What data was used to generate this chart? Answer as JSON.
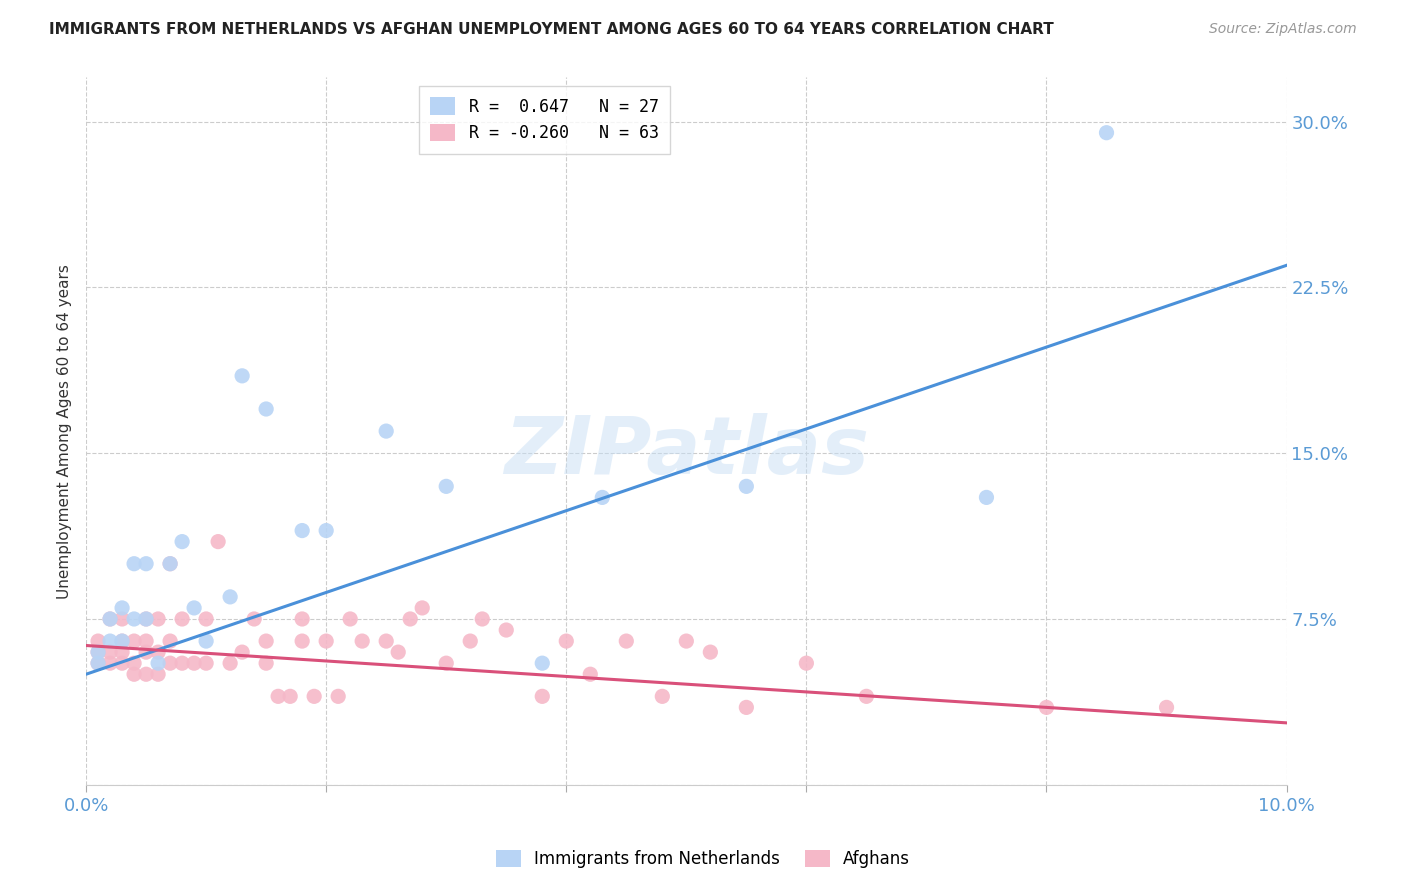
{
  "title": "IMMIGRANTS FROM NETHERLANDS VS AFGHAN UNEMPLOYMENT AMONG AGES 60 TO 64 YEARS CORRELATION CHART",
  "source": "Source: ZipAtlas.com",
  "ylabel": "Unemployment Among Ages 60 to 64 years",
  "xlim": [
    0.0,
    0.1
  ],
  "ylim": [
    0.0,
    0.32
  ],
  "yticks": [
    0.0,
    0.075,
    0.15,
    0.225,
    0.3
  ],
  "ytick_labels": [
    "",
    "7.5%",
    "15.0%",
    "22.5%",
    "30.0%"
  ],
  "xticks": [
    0.0,
    0.02,
    0.04,
    0.06,
    0.08,
    0.1
  ],
  "xtick_labels": [
    "0.0%",
    "",
    "",
    "",
    "",
    "10.0%"
  ],
  "color_netherlands": "#b8d4f5",
  "color_afghan": "#f5b8c8",
  "color_line_netherlands": "#4a90d9",
  "color_line_afghan": "#d9507a",
  "legend_R_netherlands": "R =  0.647",
  "legend_N_netherlands": "N = 27",
  "legend_R_afghan": "R = -0.260",
  "legend_N_afghan": "N = 63",
  "watermark": "ZIPatlas",
  "nl_line_x0": 0.0,
  "nl_line_y0": 0.05,
  "nl_line_x1": 0.1,
  "nl_line_y1": 0.235,
  "af_line_x0": 0.0,
  "af_line_y0": 0.063,
  "af_line_x1": 0.1,
  "af_line_y1": 0.028,
  "netherlands_x": [
    0.001,
    0.001,
    0.002,
    0.002,
    0.003,
    0.003,
    0.004,
    0.004,
    0.005,
    0.005,
    0.006,
    0.007,
    0.008,
    0.009,
    0.01,
    0.012,
    0.013,
    0.015,
    0.018,
    0.02,
    0.025,
    0.03,
    0.038,
    0.043,
    0.055,
    0.075,
    0.085
  ],
  "netherlands_y": [
    0.055,
    0.06,
    0.065,
    0.075,
    0.065,
    0.08,
    0.075,
    0.1,
    0.075,
    0.1,
    0.055,
    0.1,
    0.11,
    0.08,
    0.065,
    0.085,
    0.185,
    0.17,
    0.115,
    0.115,
    0.16,
    0.135,
    0.055,
    0.13,
    0.135,
    0.13,
    0.295
  ],
  "afghan_x": [
    0.001,
    0.001,
    0.001,
    0.002,
    0.002,
    0.002,
    0.003,
    0.003,
    0.003,
    0.003,
    0.004,
    0.004,
    0.004,
    0.005,
    0.005,
    0.005,
    0.005,
    0.006,
    0.006,
    0.006,
    0.007,
    0.007,
    0.007,
    0.008,
    0.008,
    0.009,
    0.01,
    0.01,
    0.011,
    0.012,
    0.013,
    0.014,
    0.015,
    0.015,
    0.016,
    0.017,
    0.018,
    0.018,
    0.019,
    0.02,
    0.021,
    0.022,
    0.023,
    0.025,
    0.026,
    0.027,
    0.028,
    0.03,
    0.032,
    0.033,
    0.035,
    0.038,
    0.04,
    0.042,
    0.045,
    0.048,
    0.05,
    0.052,
    0.055,
    0.06,
    0.065,
    0.08,
    0.09
  ],
  "afghan_y": [
    0.055,
    0.06,
    0.065,
    0.055,
    0.06,
    0.075,
    0.055,
    0.06,
    0.065,
    0.075,
    0.05,
    0.055,
    0.065,
    0.05,
    0.06,
    0.065,
    0.075,
    0.05,
    0.06,
    0.075,
    0.055,
    0.065,
    0.1,
    0.055,
    0.075,
    0.055,
    0.055,
    0.075,
    0.11,
    0.055,
    0.06,
    0.075,
    0.055,
    0.065,
    0.04,
    0.04,
    0.075,
    0.065,
    0.04,
    0.065,
    0.04,
    0.075,
    0.065,
    0.065,
    0.06,
    0.075,
    0.08,
    0.055,
    0.065,
    0.075,
    0.07,
    0.04,
    0.065,
    0.05,
    0.065,
    0.04,
    0.065,
    0.06,
    0.035,
    0.055,
    0.04,
    0.035,
    0.035
  ]
}
